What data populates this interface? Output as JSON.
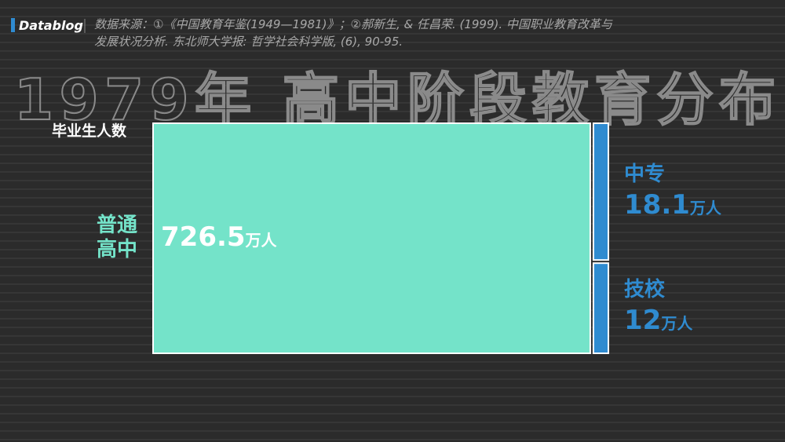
{
  "brand": "Datablog",
  "source": "数据来源：①《中国教育年鉴(1949—1981)》；②郝新生, & 任昌荣. (1999). 中国职业教育改革与发展状况分析. 东北师大学报: 哲学社会科学版, (6), 90-95.",
  "chart_data": {
    "type": "treemap",
    "title": "1979年 高中阶段教育分布",
    "ylabel": "毕业生人数",
    "unit": "万人",
    "categories": [
      "普通高中",
      "中专",
      "技校"
    ],
    "values": [
      726.5,
      18.1,
      12
    ],
    "colors": [
      "#74e3c9",
      "#2f8bd0",
      "#2f8bd0"
    ],
    "label_colors": [
      "#74e3c9",
      "#2f8bd0",
      "#2f8bd0"
    ],
    "value_label_colors": [
      "#ffffff",
      "#2f8bd0",
      "#2f8bd0"
    ]
  }
}
